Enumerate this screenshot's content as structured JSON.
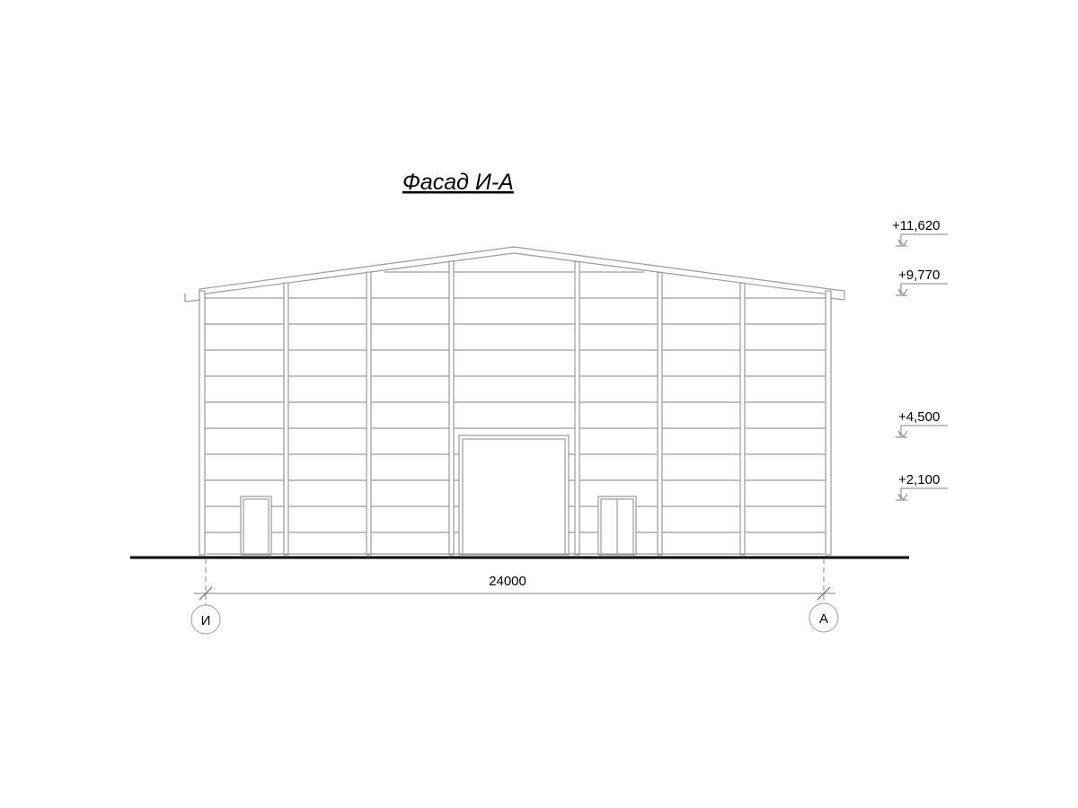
{
  "title": "Фасад И-А",
  "levels": [
    "+11,620",
    "+9,770",
    "+4,500",
    "+2,100"
  ],
  "dimension": "24000",
  "axes": [
    "И",
    "А"
  ]
}
